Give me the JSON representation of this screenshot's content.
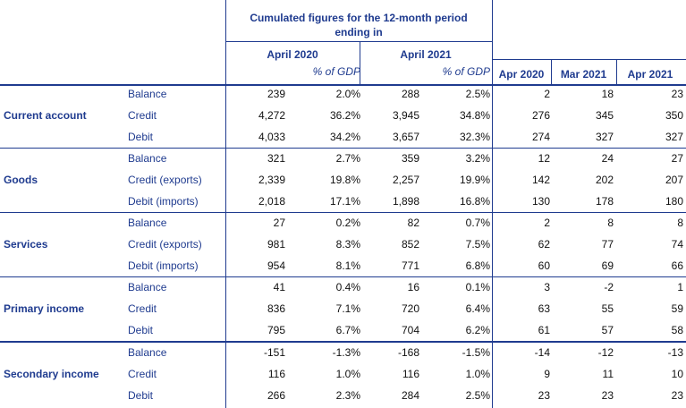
{
  "header": {
    "cumulated_line1": "Cumulated figures for the 12-month period",
    "cumulated_line2": "ending in",
    "april_2020": "April 2020",
    "april_2021": "April 2021",
    "pct_gdp": "% of GDP",
    "monthly": [
      "Apr 2020",
      "Mar 2021",
      "Apr 2021"
    ]
  },
  "sections": [
    {
      "name": "Current account",
      "rows": [
        {
          "label": "Balance",
          "values": [
            "239",
            "2.0%",
            "288",
            "2.5%",
            "2",
            "18",
            "23"
          ]
        },
        {
          "label": "Credit",
          "values": [
            "4,272",
            "36.2%",
            "3,945",
            "34.8%",
            "276",
            "345",
            "350"
          ]
        },
        {
          "label": "Debit",
          "values": [
            "4,033",
            "34.2%",
            "3,657",
            "32.3%",
            "274",
            "327",
            "327"
          ]
        }
      ]
    },
    {
      "name": "Goods",
      "rows": [
        {
          "label": "Balance",
          "values": [
            "321",
            "2.7%",
            "359",
            "3.2%",
            "12",
            "24",
            "27"
          ]
        },
        {
          "label": "Credit (exports)",
          "values": [
            "2,339",
            "19.8%",
            "2,257",
            "19.9%",
            "142",
            "202",
            "207"
          ]
        },
        {
          "label": "Debit (imports)",
          "values": [
            "2,018",
            "17.1%",
            "1,898",
            "16.8%",
            "130",
            "178",
            "180"
          ]
        }
      ]
    },
    {
      "name": "Services",
      "rows": [
        {
          "label": "Balance",
          "values": [
            "27",
            "0.2%",
            "82",
            "0.7%",
            "2",
            "8",
            "8"
          ]
        },
        {
          "label": "Credit (exports)",
          "values": [
            "981",
            "8.3%",
            "852",
            "7.5%",
            "62",
            "77",
            "74"
          ]
        },
        {
          "label": "Debit (imports)",
          "values": [
            "954",
            "8.1%",
            "771",
            "6.8%",
            "60",
            "69",
            "66"
          ]
        }
      ]
    },
    {
      "name": "Primary income",
      "rows": [
        {
          "label": "Balance",
          "values": [
            "41",
            "0.4%",
            "16",
            "0.1%",
            "3",
            "-2",
            "1"
          ]
        },
        {
          "label": "Credit",
          "values": [
            "836",
            "7.1%",
            "720",
            "6.4%",
            "63",
            "55",
            "59"
          ]
        },
        {
          "label": "Debit",
          "values": [
            "795",
            "6.7%",
            "704",
            "6.2%",
            "61",
            "57",
            "58"
          ]
        }
      ]
    },
    {
      "name": "Secondary income",
      "rows": [
        {
          "label": "Balance",
          "values": [
            "-151",
            "-1.3%",
            "-168",
            "-1.5%",
            "-14",
            "-12",
            "-13"
          ]
        },
        {
          "label": "Credit",
          "values": [
            "116",
            "1.0%",
            "116",
            "1.0%",
            "9",
            "11",
            "10"
          ]
        },
        {
          "label": "Debit",
          "values": [
            "266",
            "2.3%",
            "284",
            "2.5%",
            "23",
            "23",
            "23"
          ]
        }
      ]
    }
  ]
}
